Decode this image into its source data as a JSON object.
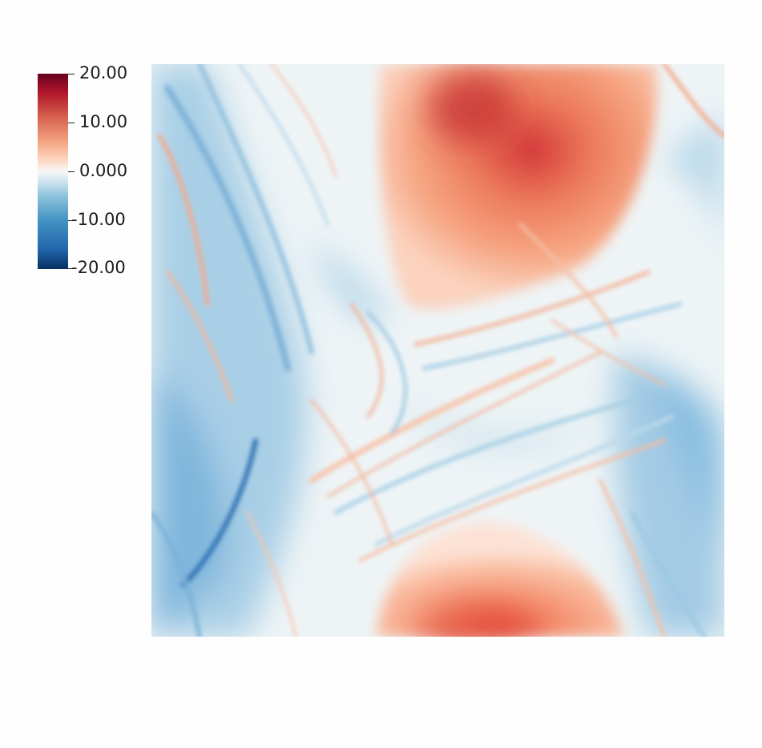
{
  "colorbar": {
    "ticks": [
      "20.00",
      "10.00",
      "0.000",
      "-10.00",
      "-20.00"
    ],
    "range": [
      -20,
      20
    ],
    "colors": [
      "#053061",
      "#2166ac",
      "#4393c3",
      "#92c5de",
      "#d1e5f0",
      "#f7f7f7",
      "#fddbc7",
      "#f4a582",
      "#d6604d",
      "#b2182b",
      "#67001f"
    ]
  }
}
